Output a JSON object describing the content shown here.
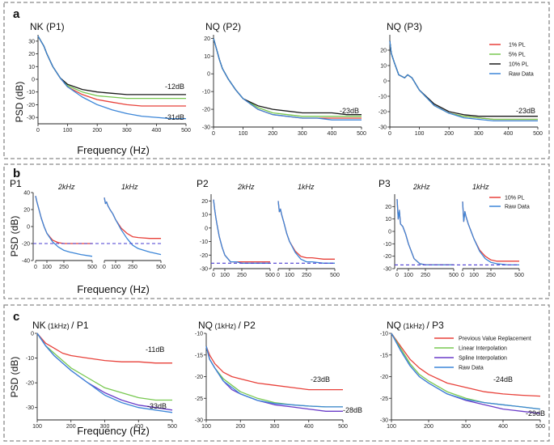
{
  "panels": {
    "a": {
      "letter": "a",
      "ylabel": "PSD (dB)",
      "xlabel": "Frequency (Hz)"
    },
    "b": {
      "letter": "b",
      "ylabel": "PSD (dB)",
      "xlabel": "Frequency (Hz)"
    },
    "c": {
      "letter": "c",
      "ylabel": "PSD (dB)",
      "xlabel": "Frequency (Hz)"
    }
  },
  "colors": {
    "red": "#e8413a",
    "green": "#78c850",
    "black": "#1a1a1a",
    "blue": "#3c86d8",
    "purple": "#6a3cc8",
    "dash": "#4a3cd0"
  },
  "chart_data": [
    {
      "id": "a1",
      "type": "line",
      "title": "NK (P1)",
      "x": [
        0,
        10,
        20,
        30,
        50,
        75,
        100,
        150,
        200,
        250,
        300,
        350,
        400,
        450,
        500
      ],
      "xlim": [
        0,
        500
      ],
      "ylim": [
        -35,
        35
      ],
      "xticks": [
        0,
        100,
        200,
        300,
        400,
        500
      ],
      "yticks": [
        30,
        20,
        10,
        0,
        -10,
        -20,
        -30
      ],
      "series": [
        {
          "name": "1%  PL",
          "color": "red",
          "values": [
            34,
            30,
            26,
            20,
            10,
            1,
            -6,
            -12,
            -16,
            -18,
            -20,
            -21,
            -21,
            -21,
            -21
          ]
        },
        {
          "name": "5%  PL",
          "color": "green",
          "values": [
            34,
            30,
            26,
            20,
            10,
            1,
            -5,
            -10,
            -13,
            -14,
            -15,
            -15,
            -15,
            -15,
            -15
          ]
        },
        {
          "name": "10% PL",
          "color": "black",
          "values": [
            34,
            30,
            26,
            20,
            10,
            1,
            -4,
            -8,
            -10,
            -11,
            -12,
            -12,
            -12,
            -12,
            -12
          ]
        },
        {
          "name": "Raw Data",
          "color": "blue",
          "values": [
            34,
            30,
            26,
            20,
            10,
            1,
            -6,
            -14,
            -20,
            -24,
            -27,
            -29,
            -30,
            -31,
            -31
          ]
        }
      ],
      "annotations": [
        "-12dB",
        "-31dB"
      ]
    },
    {
      "id": "a2",
      "type": "line",
      "title": "NQ (P2)",
      "x": [
        0,
        10,
        20,
        30,
        50,
        75,
        100,
        150,
        200,
        250,
        300,
        350,
        400,
        450,
        500
      ],
      "xlim": [
        0,
        500
      ],
      "ylim": [
        -30,
        22
      ],
      "xticks": [
        0,
        100,
        200,
        300,
        400,
        500
      ],
      "yticks": [
        20,
        10,
        0,
        -10,
        -20,
        -30
      ],
      "series": [
        {
          "name": "1%  PL",
          "color": "red",
          "values": [
            20,
            14,
            8,
            3,
            -3,
            -9,
            -14,
            -20,
            -23,
            -24,
            -25,
            -25,
            -25,
            -25,
            -25
          ]
        },
        {
          "name": "5%  PL",
          "color": "green",
          "values": [
            20,
            14,
            8,
            3,
            -3,
            -9,
            -14,
            -19,
            -22,
            -23,
            -24,
            -24,
            -24,
            -24,
            -24
          ]
        },
        {
          "name": "10% PL",
          "color": "black",
          "values": [
            20,
            14,
            8,
            3,
            -3,
            -9,
            -14,
            -18,
            -20,
            -21,
            -22,
            -22,
            -22,
            -23,
            -23
          ]
        },
        {
          "name": "Raw Data",
          "color": "blue",
          "values": [
            20,
            14,
            8,
            3,
            -3,
            -9,
            -14,
            -20,
            -23,
            -24,
            -25,
            -25,
            -26,
            -26,
            -26
          ]
        }
      ],
      "annotations": [
        "-23dB"
      ]
    },
    {
      "id": "a3",
      "type": "line",
      "title": "NQ (P3)",
      "x": [
        0,
        5,
        15,
        30,
        50,
        60,
        75,
        100,
        150,
        200,
        250,
        300,
        350,
        400,
        450,
        500
      ],
      "xlim": [
        0,
        500
      ],
      "ylim": [
        -30,
        30
      ],
      "xticks": [
        0,
        100,
        200,
        300,
        400,
        500
      ],
      "yticks": [
        20,
        10,
        0,
        -10,
        -20,
        -30
      ],
      "series": [
        {
          "name": "1%  PL",
          "color": "red",
          "values": [
            26,
            18,
            12,
            4,
            2,
            4,
            2,
            -6,
            -16,
            -21,
            -23,
            -24,
            -25,
            -25,
            -25,
            -25
          ]
        },
        {
          "name": "5%  PL",
          "color": "green",
          "values": [
            26,
            18,
            12,
            4,
            2,
            4,
            2,
            -6,
            -16,
            -21,
            -23,
            -24,
            -25,
            -25,
            -25,
            -25
          ]
        },
        {
          "name": "10% PL",
          "color": "black",
          "values": [
            26,
            18,
            12,
            4,
            2,
            4,
            2,
            -6,
            -15,
            -20,
            -22,
            -23,
            -23,
            -23,
            -23,
            -23
          ]
        },
        {
          "name": "Raw Data",
          "color": "blue",
          "values": [
            26,
            18,
            12,
            4,
            2,
            4,
            2,
            -6,
            -16,
            -21,
            -24,
            -25,
            -26,
            -26,
            -26,
            -26
          ]
        }
      ],
      "annotations": [
        "-23dB"
      ],
      "legend": [
        "1%  PL",
        "5%  PL",
        "10% PL",
        "Raw Data"
      ]
    },
    {
      "id": "b1",
      "type": "line",
      "title": "P1",
      "subtitles": [
        "2kHz",
        "1kHz"
      ],
      "x": [
        0,
        10,
        20,
        30,
        50,
        75,
        100,
        150,
        200,
        250,
        300,
        400,
        500
      ],
      "xlim": [
        0,
        500
      ],
      "ylim": [
        -40,
        40
      ],
      "xticks": [
        0,
        100,
        250,
        500
      ],
      "yticks": [
        40,
        20,
        0,
        -20,
        -40
      ],
      "reference_level": -20,
      "series": [
        {
          "name": "10% PL",
          "color": "red",
          "segment": "2kHz",
          "values": [
            36,
            30,
            25,
            20,
            10,
            0,
            -8,
            -16,
            -19,
            -20,
            -20,
            -20,
            -20
          ]
        },
        {
          "name": "Raw Data",
          "color": "blue",
          "segment": "2kHz",
          "values": [
            36,
            30,
            25,
            20,
            10,
            0,
            -8,
            -18,
            -24,
            -28,
            -30,
            -33,
            -35
          ]
        },
        {
          "name": "10% PL",
          "color": "red",
          "segment": "1kHz",
          "values": [
            34,
            27,
            29,
            25,
            20,
            15,
            8,
            -2,
            -8,
            -12,
            -13,
            -14,
            -14
          ]
        },
        {
          "name": "Raw Data",
          "color": "blue",
          "segment": "1kHz",
          "values": [
            34,
            27,
            29,
            25,
            20,
            15,
            8,
            -4,
            -14,
            -22,
            -26,
            -30,
            -33
          ]
        }
      ]
    },
    {
      "id": "b2",
      "type": "line",
      "title": "P2",
      "subtitles": [
        "2kHz",
        "1kHz"
      ],
      "x": [
        0,
        10,
        20,
        30,
        50,
        75,
        100,
        150,
        200,
        250,
        300,
        400,
        500
      ],
      "xlim": [
        0,
        500
      ],
      "ylim": [
        -30,
        25
      ],
      "xticks": [
        0,
        100,
        250,
        500
      ],
      "yticks": [
        20,
        10,
        0,
        -10,
        -20,
        -30
      ],
      "reference_level": -26,
      "series": [
        {
          "name": "10% PL",
          "color": "red",
          "segment": "2kHz",
          "values": [
            21,
            14,
            8,
            3,
            -6,
            -14,
            -20,
            -25,
            -25,
            -25,
            -25,
            -25,
            -25
          ]
        },
        {
          "name": "Raw Data",
          "color": "blue",
          "segment": "2kHz",
          "values": [
            21,
            14,
            8,
            3,
            -6,
            -14,
            -20,
            -25,
            -25,
            -26,
            -26,
            -26,
            -26
          ]
        },
        {
          "name": "10% PL",
          "color": "red",
          "segment": "1kHz",
          "values": [
            20,
            12,
            14,
            10,
            4,
            -4,
            -10,
            -17,
            -21,
            -22,
            -22,
            -23,
            -23
          ]
        },
        {
          "name": "Raw Data",
          "color": "blue",
          "segment": "1kHz",
          "values": [
            20,
            12,
            14,
            10,
            4,
            -4,
            -10,
            -18,
            -23,
            -25,
            -25,
            -26,
            -26
          ]
        }
      ]
    },
    {
      "id": "b3",
      "type": "line",
      "title": "P3",
      "subtitles": [
        "2kHz",
        "1kHz"
      ],
      "x": [
        0,
        10,
        20,
        30,
        50,
        75,
        100,
        150,
        200,
        250,
        300,
        400,
        500
      ],
      "xlim": [
        0,
        500
      ],
      "ylim": [
        -30,
        30
      ],
      "xticks": [
        0,
        100,
        250,
        500
      ],
      "yticks": [
        20,
        10,
        0,
        -10,
        -20,
        -30
      ],
      "reference_level": -27,
      "series": [
        {
          "name": "10% PL",
          "color": "red",
          "segment": "2kHz",
          "values": [
            26,
            10,
            17,
            6,
            4,
            -2,
            -10,
            -22,
            -26,
            -27,
            -27,
            -27,
            -27
          ]
        },
        {
          "name": "Raw Data",
          "color": "blue",
          "segment": "2kHz",
          "values": [
            26,
            10,
            17,
            6,
            4,
            -2,
            -10,
            -22,
            -26,
            -27,
            -27,
            -27,
            -27
          ]
        },
        {
          "name": "10% PL",
          "color": "red",
          "segment": "1kHz",
          "values": [
            24,
            8,
            16,
            12,
            6,
            0,
            -6,
            -15,
            -20,
            -23,
            -24,
            -24,
            -24
          ]
        },
        {
          "name": "Raw Data",
          "color": "blue",
          "segment": "1kHz",
          "values": [
            24,
            8,
            16,
            12,
            6,
            0,
            -6,
            -16,
            -22,
            -25,
            -26,
            -27,
            -27
          ]
        }
      ],
      "legend": [
        "10% PL",
        "Raw Data"
      ]
    },
    {
      "id": "c1",
      "type": "line",
      "title_main": "NK",
      "title_small": " (1kHz) ",
      "title_tail": "/ P1",
      "x": [
        100,
        125,
        150,
        175,
        200,
        250,
        300,
        350,
        400,
        450,
        500
      ],
      "xlim": [
        100,
        500
      ],
      "ylim": [
        -35,
        0
      ],
      "xticks": [
        100,
        200,
        300,
        400,
        500
      ],
      "yticks": [
        0,
        -10,
        -20,
        -30
      ],
      "series": [
        {
          "name": "Previous Value Replacement",
          "color": "red",
          "values": [
            0,
            -4,
            -6,
            -8,
            -9,
            -10,
            -11,
            -11.5,
            -11.5,
            -12,
            -12
          ]
        },
        {
          "name": "Linear Interpolation",
          "color": "green",
          "values": [
            0,
            -5,
            -8,
            -11,
            -14,
            -18,
            -22,
            -24,
            -26,
            -27,
            -27
          ]
        },
        {
          "name": "Spline Interpolation",
          "color": "purple",
          "values": [
            0,
            -5,
            -9,
            -12,
            -15,
            -20,
            -24,
            -27,
            -29,
            -30,
            -31
          ]
        },
        {
          "name": "Raw Data",
          "color": "blue",
          "values": [
            0,
            -5,
            -9,
            -12,
            -15,
            -20,
            -25,
            -28,
            -30,
            -31,
            -32
          ]
        }
      ],
      "annotations": [
        "-11dB",
        "-33dB"
      ]
    },
    {
      "id": "c2",
      "type": "line",
      "title_main": "NQ",
      "title_small": " (1kHz) ",
      "title_tail": "/ P2",
      "x": [
        100,
        110,
        125,
        150,
        175,
        200,
        250,
        300,
        350,
        400,
        450,
        500
      ],
      "xlim": [
        100,
        500
      ],
      "ylim": [
        -30,
        -10
      ],
      "xticks": [
        100,
        200,
        300,
        400,
        500
      ],
      "yticks": [
        -10,
        -15,
        -20,
        -25,
        -30
      ],
      "series": [
        {
          "name": "Previous Value Replacement",
          "color": "red",
          "values": [
            -13,
            -15,
            -17,
            -19,
            -20,
            -20.5,
            -21.5,
            -22,
            -22.5,
            -23,
            -23,
            -23
          ]
        },
        {
          "name": "Linear Interpolation",
          "color": "green",
          "values": [
            -13,
            -16,
            -18,
            -20.5,
            -22,
            -23.5,
            -25,
            -26,
            -26.5,
            -26.8,
            -27,
            -27
          ]
        },
        {
          "name": "Spline Interpolation",
          "color": "purple",
          "values": [
            -13,
            -16,
            -18,
            -21,
            -23,
            -24,
            -25.5,
            -26.5,
            -27,
            -27.5,
            -28,
            -28
          ]
        },
        {
          "name": "Raw Data",
          "color": "blue",
          "values": [
            -13,
            -16,
            -18,
            -21,
            -22.5,
            -24,
            -25.5,
            -26.2,
            -26.5,
            -26.8,
            -27,
            -27
          ]
        }
      ],
      "annotations": [
        "-23dB",
        "-28dB"
      ]
    },
    {
      "id": "c3",
      "type": "line",
      "title_main": "NQ",
      "title_small": " (1kHz) ",
      "title_tail": "/ P3",
      "x": [
        100,
        125,
        150,
        175,
        200,
        250,
        300,
        350,
        400,
        450,
        500
      ],
      "xlim": [
        100,
        500
      ],
      "ylim": [
        -30,
        -10
      ],
      "xticks": [
        100,
        200,
        300,
        400,
        500
      ],
      "yticks": [
        -10,
        -15,
        -20,
        -25,
        -30
      ],
      "series": [
        {
          "name": "Previous Value Replacement",
          "color": "red",
          "values": [
            -10,
            -13,
            -16,
            -18,
            -19.5,
            -21.5,
            -22.5,
            -23.5,
            -24,
            -24.3,
            -24.5
          ]
        },
        {
          "name": "Linear Interpolation",
          "color": "green",
          "values": [
            -10,
            -13.5,
            -17,
            -19.5,
            -21,
            -23.5,
            -25,
            -26,
            -26.5,
            -27,
            -27.5
          ]
        },
        {
          "name": "Spline Interpolation",
          "color": "purple",
          "values": [
            -10,
            -14,
            -17.5,
            -20,
            -21.5,
            -24,
            -25.5,
            -26.5,
            -27.5,
            -28,
            -28.5
          ]
        },
        {
          "name": "Raw Data",
          "color": "blue",
          "values": [
            -10,
            -14,
            -17.5,
            -20,
            -21.5,
            -24,
            -25.3,
            -26,
            -26.5,
            -27,
            -27.5
          ]
        }
      ],
      "annotations": [
        "-24dB",
        "-29dB"
      ],
      "legend": [
        "Previous Value Replacement",
        "Linear Interpolation",
        "Spline Interpolation",
        "Raw Data"
      ]
    }
  ]
}
